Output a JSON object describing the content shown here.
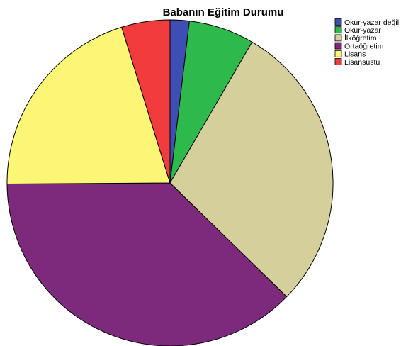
{
  "chart_data": {
    "type": "pie",
    "title": "Babanın Eğitim Durumu",
    "legend_position": "top-right",
    "start_angle_deg": 0,
    "direction": "clockwise",
    "slices": [
      {
        "label": "Okur-yazar değil",
        "value": 1.9,
        "color": "#3d4fb5"
      },
      {
        "label": "Okur-yazar",
        "value": 6.5,
        "color": "#2eba4b"
      },
      {
        "label": "İlköğretim",
        "value": 28.9,
        "color": "#d4cf9b"
      },
      {
        "label": "Ortaöğretim",
        "value": 37.6,
        "color": "#7d2a7c"
      },
      {
        "label": "Lisans",
        "value": 20.3,
        "color": "#fbf676"
      },
      {
        "label": "Lisansüstü",
        "value": 4.8,
        "color": "#f13b3d"
      }
    ]
  }
}
